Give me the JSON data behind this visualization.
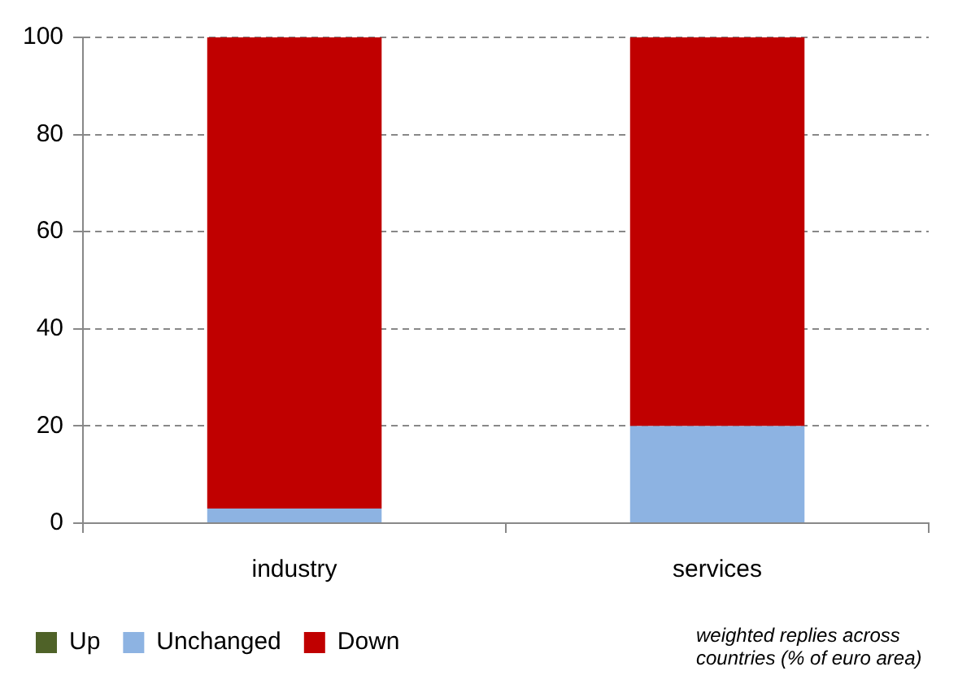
{
  "chart_data": {
    "type": "bar",
    "stacked": true,
    "categories": [
      "industry",
      "services"
    ],
    "series": [
      {
        "name": "Up",
        "color": "#4f6228",
        "values": [
          0,
          0
        ]
      },
      {
        "name": "Unchanged",
        "color": "#8db3e2",
        "values": [
          3,
          20
        ]
      },
      {
        "name": "Down",
        "color": "#c00000",
        "values": [
          97,
          80
        ]
      }
    ],
    "ylim": [
      0,
      100
    ],
    "yticks": [
      0,
      20,
      40,
      60,
      80,
      100
    ],
    "grid": "y",
    "legend": "bottom left",
    "annotations": [
      "weighted replies across countries (% of euro area)"
    ]
  }
}
